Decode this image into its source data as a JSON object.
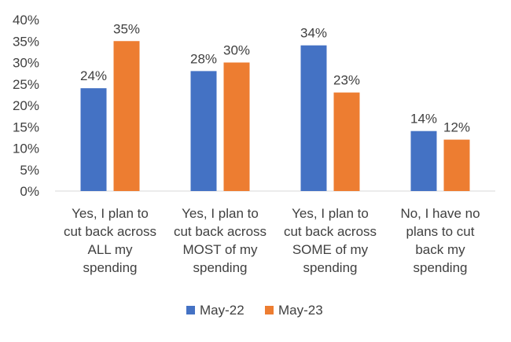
{
  "chart_data": {
    "type": "bar",
    "title": "",
    "xlabel": "",
    "ylabel": "",
    "ylim": [
      0,
      40
    ],
    "yticks": [
      "0%",
      "5%",
      "10%",
      "15%",
      "20%",
      "25%",
      "30%",
      "35%",
      "40%"
    ],
    "grid": false,
    "legend_position": "bottom",
    "categories": [
      [
        "Yes, I plan to",
        "cut back across",
        "ALL my",
        "spending"
      ],
      [
        "Yes, I plan to",
        "cut back across",
        "MOST of my",
        "spending"
      ],
      [
        "Yes, I plan to",
        "cut back across",
        "SOME of my",
        "spending"
      ],
      [
        "No, I have no",
        "plans to cut",
        "back my",
        "spending"
      ]
    ],
    "series": [
      {
        "name": "May-22",
        "color": "#4472C4",
        "values": [
          24,
          28,
          34,
          14
        ],
        "labels": [
          "24%",
          "28%",
          "34%",
          "14%"
        ]
      },
      {
        "name": "May-23",
        "color": "#ED7D31",
        "values": [
          35,
          30,
          23,
          12
        ],
        "labels": [
          "35%",
          "30%",
          "23%",
          "12%"
        ]
      }
    ]
  }
}
